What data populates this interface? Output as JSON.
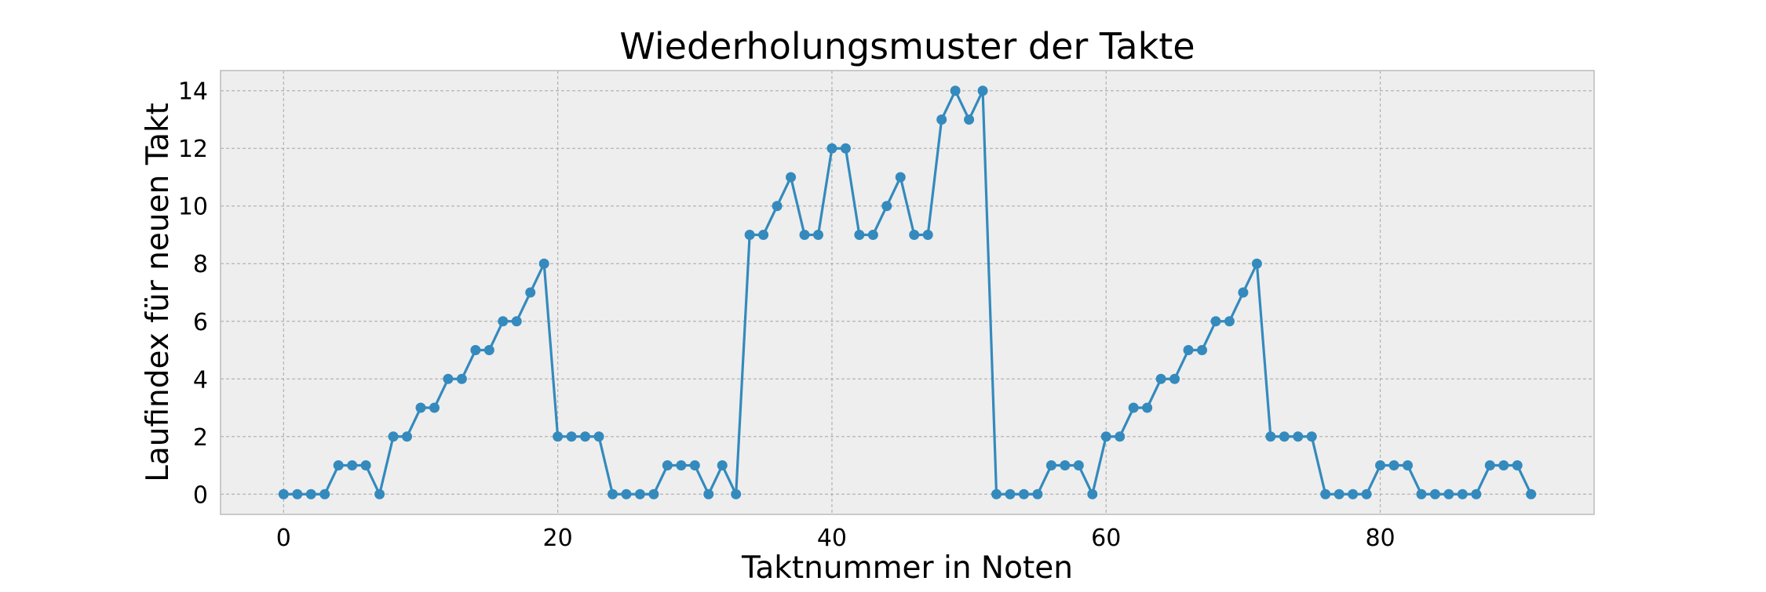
{
  "chart_data": {
    "type": "line",
    "title": "Wiederholungsmuster der Takte",
    "xlabel": "Taktnummer in Noten",
    "ylabel": "Laufindex für neuen Takt",
    "xlim": [
      -4.6,
      95.6
    ],
    "ylim": [
      -0.7,
      14.7
    ],
    "xticks": [
      0,
      20,
      40,
      60,
      80
    ],
    "yticks": [
      0,
      2,
      4,
      6,
      8,
      10,
      12,
      14
    ],
    "grid": true,
    "style": "bmh",
    "colors": {
      "series": "#348ABD",
      "plot_background": "#EEEEEE",
      "grid": "#B2B2B2",
      "frame": "#BCBCBC"
    },
    "series": [
      {
        "marker": "circle",
        "x": [
          0,
          1,
          2,
          3,
          4,
          5,
          6,
          7,
          8,
          9,
          10,
          11,
          12,
          13,
          14,
          15,
          16,
          17,
          18,
          19,
          20,
          21,
          22,
          23,
          24,
          25,
          26,
          27,
          28,
          29,
          30,
          31,
          32,
          33,
          34,
          35,
          36,
          37,
          38,
          39,
          40,
          41,
          42,
          43,
          44,
          45,
          46,
          47,
          48,
          49,
          50,
          51,
          52,
          53,
          54,
          55,
          56,
          57,
          58,
          59,
          60,
          61,
          62,
          63,
          64,
          65,
          66,
          67,
          68,
          69,
          70,
          71,
          72,
          73,
          74,
          75,
          76,
          77,
          78,
          79,
          80,
          81,
          82,
          83,
          84,
          85,
          86,
          87,
          88,
          89,
          90,
          91
        ],
        "values": [
          0,
          0,
          0,
          0,
          1,
          1,
          1,
          0,
          2,
          2,
          3,
          3,
          4,
          4,
          5,
          5,
          6,
          6,
          7,
          8,
          2,
          2,
          2,
          2,
          0,
          0,
          0,
          0,
          1,
          1,
          1,
          0,
          1,
          0,
          9,
          9,
          10,
          11,
          9,
          9,
          12,
          12,
          9,
          9,
          10,
          11,
          9,
          9,
          13,
          14,
          13,
          14,
          0,
          0,
          0,
          0,
          1,
          1,
          1,
          0,
          2,
          2,
          3,
          3,
          4,
          4,
          5,
          5,
          6,
          6,
          7,
          8,
          2,
          2,
          2,
          2,
          0,
          0,
          0,
          0,
          1,
          1,
          1,
          0,
          0,
          0,
          0,
          0,
          1,
          1,
          1,
          0
        ]
      }
    ]
  }
}
